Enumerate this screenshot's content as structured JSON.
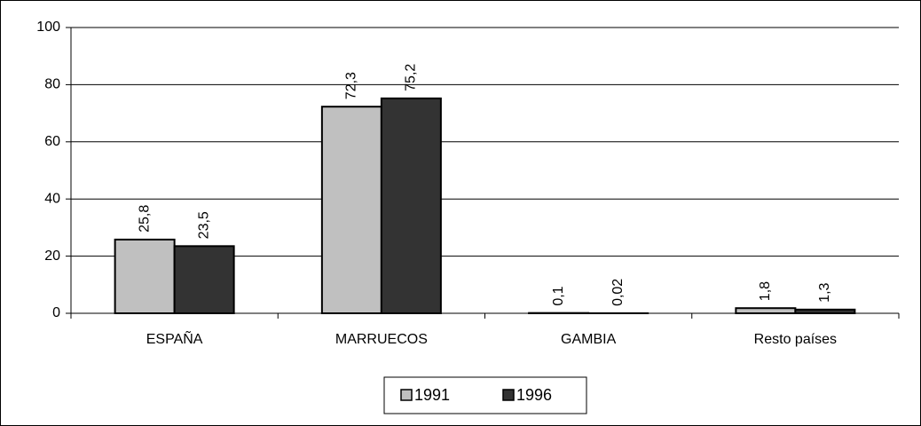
{
  "chart_data": {
    "type": "bar",
    "categories": [
      "ESPAÑA",
      "MARRUECOS",
      "GAMBIA",
      "Resto países"
    ],
    "series": [
      {
        "name": "1991",
        "color": "#c0c0c0",
        "values": [
          25.8,
          72.3,
          0.1,
          1.8
        ],
        "value_labels": [
          "25,8",
          "72,3",
          "0,1",
          "1,8"
        ]
      },
      {
        "name": "1996",
        "color": "#333333",
        "values": [
          23.5,
          75.2,
          0.02,
          1.3
        ],
        "value_labels": [
          "23,5",
          "75,2",
          "0,02",
          "1,3"
        ]
      }
    ],
    "ylim": [
      0,
      100
    ],
    "yticks": [
      0,
      20,
      40,
      60,
      80,
      100
    ],
    "grid": true,
    "legend": "bottom"
  }
}
